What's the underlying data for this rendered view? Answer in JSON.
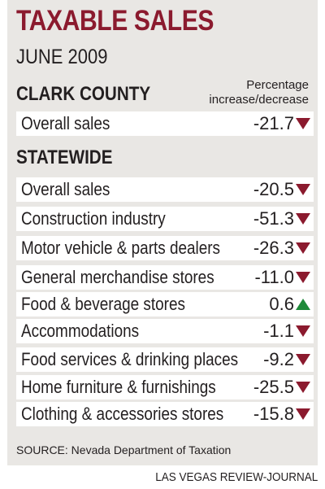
{
  "title": "TAXABLE SALES",
  "subtitle": "JUNE 2009",
  "column_header": "Percentage increase/decrease",
  "source": "SOURCE: Nevada Department of Taxation",
  "credit": "LAS VEGAS REVIEW-JOURNAL",
  "colors": {
    "title": "#8b1a2e",
    "decrease": "#8b1a2e",
    "increase": "#1f8a3a"
  },
  "chart_data": {
    "type": "table",
    "title": "TAXABLE SALES",
    "subtitle": "JUNE 2009",
    "value_label": "Percentage increase/decrease",
    "groups": [
      {
        "name": "CLARK COUNTY",
        "rows": [
          {
            "label": "Overall sales",
            "value": "-21.7",
            "direction": "down"
          }
        ]
      },
      {
        "name": "STATEWIDE",
        "rows": [
          {
            "label": "Overall sales",
            "value": "-20.5",
            "direction": "down"
          },
          {
            "label": "Construction industry",
            "value": "-51.3",
            "direction": "down"
          },
          {
            "label": "Motor vehicle & parts dealers",
            "value": "-26.3",
            "direction": "down"
          },
          {
            "label": "General merchandise stores",
            "value": "-11.0",
            "direction": "down"
          },
          {
            "label": "Food & beverage stores",
            "value": "0.6",
            "direction": "up"
          },
          {
            "label": "Accommodations",
            "value": "-1.1",
            "direction": "down"
          },
          {
            "label": "Food services & drinking places",
            "value": "-9.2",
            "direction": "down"
          },
          {
            "label": "Home furniture & furnishings",
            "value": "-25.5",
            "direction": "down"
          },
          {
            "label": "Clothing & accessories stores",
            "value": "-15.8",
            "direction": "down"
          }
        ]
      }
    ]
  }
}
